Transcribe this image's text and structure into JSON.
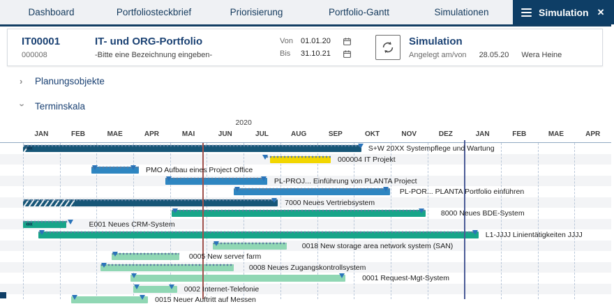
{
  "nav": {
    "tabs": [
      "Dashboard",
      "Portfoliosteckbrief",
      "Priorisierung",
      "Portfolio-Gantt",
      "Simulationen"
    ],
    "active_tab": "Simulation",
    "close_icon": "✕"
  },
  "header": {
    "portfolio_id": "IT00001",
    "portfolio_code": "000008",
    "portfolio_title": "IT- und ORG-Portfolio",
    "portfolio_subtitle": "-Bitte eine Bezeichnung eingeben-",
    "von_label": "Von",
    "von_value": "01.01.20",
    "bis_label": "Bis",
    "bis_value": "31.10.21",
    "sim_title": "Simulation",
    "created_label": "Angelegt am/von",
    "created_date": "28.05.20",
    "created_by": "Wera Heine"
  },
  "sections": {
    "planungsobjekte": "Planungsobjekte",
    "terminskala": "Terminskala"
  },
  "chart_data": {
    "type": "gantt",
    "title": "Terminskala",
    "year_label": "2020",
    "year_label_month_center": 6,
    "months": [
      "JAN",
      "FEB",
      "MAE",
      "APR",
      "MAI",
      "JUN",
      "JUL",
      "AUG",
      "SEP",
      "OKT",
      "NOV",
      "DEZ",
      "JAN",
      "FEB",
      "MAE",
      "APR"
    ],
    "axis": {
      "start": "JAN 2020",
      "end": "APR 2021",
      "months_total": 16
    },
    "today_line_month": 4.88,
    "year_boundary_month": 12,
    "colors": {
      "navy": "#175677",
      "blue": "#2e86c1",
      "teal": "#17a589",
      "green": "#90d7b4",
      "yellow": "#f2d600",
      "dots": "#5b7da0",
      "marker": "#2a74ba",
      "today_line": "#a0524d",
      "year_line": "#4a5a96",
      "grid": "#b9c7d9"
    },
    "rows": [
      {
        "label": "S+W 20XX Systempflege und Wartung",
        "style": "navy",
        "start": 0,
        "end": 9.2,
        "markers": [
          9.2
        ],
        "chevron": true,
        "hatch_end": 0.12,
        "dots": true
      },
      {
        "label": "000004 IT Projekt",
        "style": "yellow",
        "start": 6.72,
        "end": 8.37,
        "markers": [
          6.6
        ],
        "dots": true,
        "dots_start": 6.6
      },
      {
        "label": "PMO  Aufbau eines Project Office",
        "style": "blue",
        "start": 1.86,
        "end": 3.15,
        "markers": [
          1.97,
          3.0
        ],
        "dots": true
      },
      {
        "label": "PL-PROJ...  Einführung von PLANTA Project",
        "style": "blue",
        "start": 3.87,
        "end": 6.64,
        "markers": [
          3.97,
          6.55
        ],
        "dots": true
      },
      {
        "label": "PL-POR...  PLANTA Portfolio einführen",
        "style": "blue",
        "start": 5.73,
        "end": 9.98,
        "markers": [
          5.83,
          9.88
        ],
        "dots": true,
        "label_gap": 14
      },
      {
        "label": "7000 Neues Vertriebsystem",
        "style": "navy",
        "start": 0,
        "end": 6.93,
        "markers": [
          6.84
        ],
        "hatch_end": 1.4,
        "dots": true
      },
      {
        "label": "8000 Neues BDE-System",
        "style": "teal",
        "start": 4.04,
        "end": 10.95,
        "markers": [
          4.14,
          10.85
        ],
        "dots": true,
        "label_gap": 22
      },
      {
        "label": "E001 Neues CRM-System",
        "style": "teal",
        "start": 0,
        "end": 1.18,
        "markers": [
          1.3
        ],
        "chevron": true,
        "dots": true,
        "dots_end": 1.33,
        "label_gap": 26
      },
      {
        "label": "L1-JJJJ Linientätigkeiten JJJJ",
        "style": "teal",
        "start": 0.42,
        "end": 12.39,
        "markers": [
          0.52,
          12.3
        ],
        "dots": true
      },
      {
        "label": "0018 New storage area network system (SAN)",
        "style": "green",
        "start": 5.16,
        "end": 7.17,
        "markers": [
          5.26
        ],
        "dots": true,
        "label_gap": 22
      },
      {
        "label": "0005 New server farm",
        "style": "green",
        "start": 2.41,
        "end": 4.25,
        "markers": [
          2.51
        ],
        "dots": true,
        "label_gap": 14
      },
      {
        "label": "0008 Neues Zugangskontrollsystem",
        "style": "green",
        "start": 2.11,
        "end": 5.73,
        "markers": [
          2.21
        ],
        "dots": true,
        "label_gap": 22
      },
      {
        "label": "0001 Request-Mgt-System",
        "style": "green",
        "start": 2.92,
        "end": 8.77,
        "markers": [
          3.02,
          8.68
        ],
        "dots": false,
        "label_gap": 24
      },
      {
        "label": "0002 Internet-Telefonie",
        "style": "green",
        "start": 3.0,
        "end": 4.19,
        "markers": [
          3.1,
          4.06
        ],
        "dots": false
      },
      {
        "label": "0015 Neuer Auftritt auf Messen",
        "style": "green",
        "start": 1.31,
        "end": 3.4,
        "markers": [
          1.41,
          3.26
        ],
        "dots": false
      }
    ]
  }
}
